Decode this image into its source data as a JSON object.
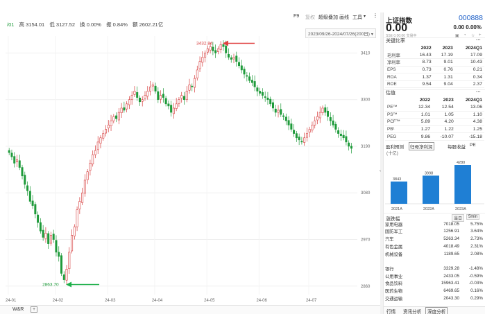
{
  "toolbar": {
    "items": [
      {
        "label": "F9",
        "dim": false
      },
      {
        "label": "复权",
        "dim": true
      },
      {
        "label": "超级叠加",
        "dim": false
      },
      {
        "label": "画线",
        "dim": false
      },
      {
        "label": "工具",
        "dim": false
      }
    ]
  },
  "stats": {
    "prefix": "/01",
    "high": "高 3154.01",
    "low": "低 3127.52",
    "turnover": "换 0.00%",
    "amplitude": "振 0.84%",
    "volume": "额 2602.21亿"
  },
  "date_range": "2023/09/26-2024/07/26(200日)",
  "chart_data": {
    "type": "candlestick",
    "y_ticks": [
      "3410",
      "3300",
      "3190",
      "3080",
      "2970",
      "2860"
    ],
    "y_range": [
      2840,
      3450
    ],
    "x_ticks": [
      "24-01",
      "24-02",
      "24-03",
      "24-04",
      "24-05",
      "24-06",
      "24-07"
    ],
    "max_label": "3432.84",
    "max_value": 3432.84,
    "min_label": "2863.70",
    "min_value": 2863.7,
    "closes": [
      3175,
      3165,
      3150,
      3158,
      3140,
      3120,
      3100,
      3085,
      3060,
      3050,
      3030,
      3010,
      2990,
      2975,
      2985,
      2960,
      2980,
      2970,
      2940,
      2930,
      2890,
      2875,
      2900,
      2940,
      2980,
      3000,
      3040,
      3060,
      3080,
      3110,
      3130,
      3150,
      3170,
      3180,
      3200,
      3210,
      3220,
      3230,
      3240,
      3250,
      3260,
      3255,
      3270,
      3280,
      3275,
      3290,
      3300,
      3310,
      3320,
      3305,
      3295,
      3300,
      3310,
      3320,
      3330,
      3335,
      3320,
      3300,
      3310,
      3305,
      3290,
      3285,
      3270,
      3280,
      3290,
      3300,
      3310,
      3300,
      3320,
      3335,
      3330,
      3350,
      3370,
      3390,
      3400,
      3410,
      3420,
      3425,
      3415,
      3410,
      3420,
      3430,
      3425,
      3410,
      3400,
      3395,
      3400,
      3390,
      3380,
      3370,
      3360,
      3355,
      3345,
      3340,
      3330,
      3320,
      3315,
      3310,
      3305,
      3300,
      3290,
      3280,
      3270,
      3275,
      3265,
      3260,
      3250,
      3240,
      3230,
      3220,
      3210,
      3205,
      3200,
      3210,
      3220,
      3230,
      3240,
      3250,
      3260,
      3270,
      3280,
      3270,
      3260,
      3250,
      3240,
      3230,
      3220,
      3215,
      3210,
      3200,
      3190,
      3185
    ],
    "series_colors": {
      "up": "#d63b3b",
      "down": "#1e9a3a"
    }
  },
  "bottom_tabs": {
    "first": "W&R",
    "plus": "+"
  },
  "panel": {
    "name": "上证指数",
    "code": "000888",
    "price": "0.00",
    "change": "0.00  0.00%",
    "sub": "SSE  0.00:00  交易中",
    "key_ratio_title": "关键比率",
    "ratio_headers": [
      "",
      "2022",
      "2023",
      "2024Q1"
    ],
    "ratios": [
      [
        "毛利率",
        "16.43",
        "17.19",
        "17.09"
      ],
      [
        "净利率",
        "8.73",
        "9.01",
        "10.43"
      ],
      [
        "EPS",
        "0.73",
        "0.76",
        "0.21"
      ],
      [
        "ROA",
        "1.37",
        "1.31",
        "0.34"
      ],
      [
        "ROE",
        "9.54",
        "9.04",
        "2.37"
      ]
    ],
    "valuation_title": "估值",
    "val_headers": [
      "",
      "2022",
      "2023",
      "2024Q1"
    ],
    "valuations": [
      [
        "PE™",
        "12.34",
        "12.54",
        "13.06"
      ],
      [
        "PS™",
        "1.01",
        "1.05",
        "1.10"
      ],
      [
        "PCF™",
        "5.89",
        "4.20",
        "4.38"
      ],
      [
        "PB¹",
        "1.27",
        "1.22",
        "1.25"
      ],
      [
        "PEG",
        "9.86",
        "-10.07",
        "-15.18"
      ]
    ],
    "forecast_tabs": [
      "盈利预测",
      "归母净利润",
      "每股收益",
      "PE"
    ],
    "forecast_unit": "(十亿)",
    "forecast_chart": {
      "type": "bar",
      "categories": [
        "2021A",
        "2022A",
        "2023A"
      ],
      "values": [
        3843,
        3998,
        4280
      ],
      "labels": [
        "3843",
        "3998",
        "4280"
      ]
    },
    "sector_label": "涨跌幅",
    "sector_btns": [
      "当日",
      "5min"
    ],
    "sectors_up": [
      [
        "家用电器",
        "7018.05",
        "5.75%"
      ],
      [
        "国防军工",
        "1256.91",
        "3.64%"
      ],
      [
        "汽车",
        "5263.34",
        "2.73%"
      ],
      [
        "有色金属",
        "4018.49",
        "2.31%"
      ],
      [
        "机械设备",
        "1189.65",
        "2.08%"
      ]
    ],
    "sectors_down": [
      [
        "银行",
        "3329.28",
        "-1.48%"
      ],
      [
        "公用事业",
        "2433.05",
        "-0.59%"
      ],
      [
        "食品饮料",
        "15963.41",
        "-0.03%"
      ],
      [
        "医药生物",
        "6469.65",
        "0.16%"
      ],
      [
        "交通运输",
        "2043.30",
        "0.29%"
      ]
    ],
    "bottom_tabs": [
      "行情",
      "资讯分析",
      "深度分析"
    ]
  }
}
